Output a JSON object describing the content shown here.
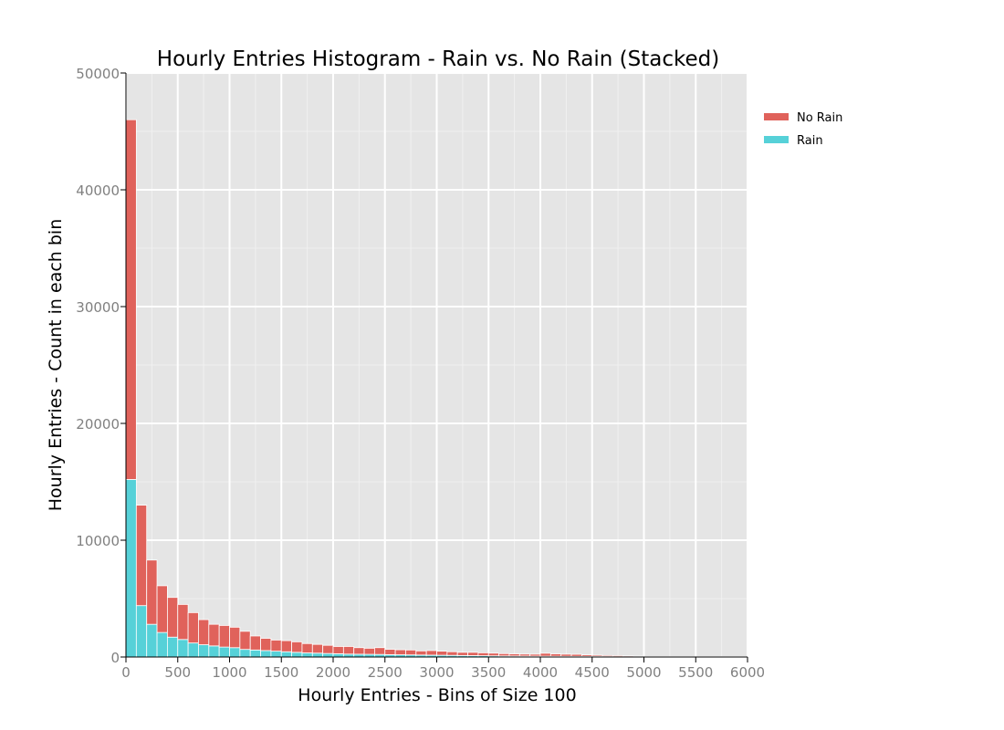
{
  "chart_data": {
    "type": "bar",
    "stacked": true,
    "title": "Hourly Entries Histogram - Rain vs. No Rain (Stacked)",
    "xlabel": "Hourly Entries - Bins of Size 100",
    "ylabel": "Hourly Entries - Count in each bin",
    "bin_size": 100,
    "xlim": [
      0,
      6000
    ],
    "ylim": [
      0,
      50000
    ],
    "xticks": [
      0,
      500,
      1000,
      1500,
      2000,
      2500,
      3000,
      3500,
      4000,
      4500,
      5000,
      5500,
      6000
    ],
    "yticks": [
      0,
      10000,
      20000,
      30000,
      40000,
      50000
    ],
    "grid": true,
    "legend": "right",
    "bin_starts": [
      0,
      100,
      200,
      300,
      400,
      500,
      600,
      700,
      800,
      900,
      1000,
      1100,
      1200,
      1300,
      1400,
      1500,
      1600,
      1700,
      1800,
      1900,
      2000,
      2100,
      2200,
      2300,
      2400,
      2500,
      2600,
      2700,
      2800,
      2900,
      3000,
      3100,
      3200,
      3300,
      3400,
      3500,
      3600,
      3700,
      3800,
      3900,
      4000,
      4100,
      4200,
      4300,
      4400,
      4500,
      4600,
      4700,
      4800,
      4900
    ],
    "series": [
      {
        "name": "Rain",
        "color": "#56d1d8",
        "values": [
          15200,
          4400,
          2800,
          2100,
          1700,
          1500,
          1200,
          1050,
          950,
          850,
          800,
          650,
          600,
          550,
          500,
          450,
          400,
          350,
          330,
          300,
          280,
          250,
          240,
          230,
          220,
          200,
          190,
          180,
          170,
          160,
          150,
          140,
          130,
          120,
          110,
          100,
          90,
          85,
          80,
          75,
          70,
          65,
          60,
          55,
          50,
          45,
          40,
          35,
          30,
          25
        ]
      },
      {
        "name": "No Rain",
        "color": "#e0625b",
        "values": [
          30800,
          8600,
          5500,
          4000,
          3400,
          3000,
          2600,
          2150,
          1850,
          1850,
          1750,
          1550,
          1200,
          1050,
          950,
          950,
          900,
          800,
          750,
          700,
          620,
          650,
          560,
          520,
          580,
          460,
          430,
          420,
          350,
          390,
          350,
          310,
          270,
          280,
          250,
          230,
          200,
          185,
          170,
          165,
          250,
          205,
          180,
          175,
          130,
          105,
          90,
          85,
          70,
          55
        ]
      }
    ]
  }
}
